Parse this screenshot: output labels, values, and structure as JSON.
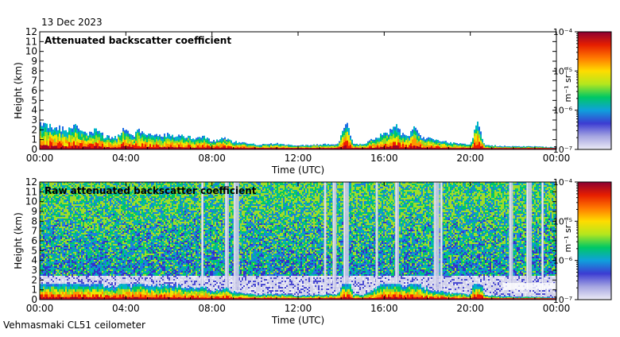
{
  "date_label": "13 Dec 2023",
  "footer_label": "Vehmasmaki CL51 ceilometer",
  "chart_data": [
    {
      "type": "heatmap",
      "title": "Attenuated backscatter coefficient",
      "xlabel": "Time (UTC)",
      "ylabel": "Height (km)",
      "x_ticks": [
        "00:00",
        "04:00",
        "08:00",
        "12:00",
        "16:00",
        "20:00",
        "00:00"
      ],
      "y_ticks": [
        "0",
        "1",
        "2",
        "3",
        "4",
        "5",
        "6",
        "7",
        "8",
        "9",
        "10",
        "11",
        "12"
      ],
      "xlim_hours": [
        0,
        24
      ],
      "ylim_km": [
        0,
        12
      ],
      "colorbar": {
        "label": "m⁻¹ sr⁻¹",
        "ticks": [
          "10⁻⁴",
          "10⁻⁵",
          "10⁻⁶",
          "10⁻⁷"
        ],
        "range_exponent": [
          -7,
          -4
        ]
      },
      "aerosol_layer_top_km": [
        2.4,
        2.1,
        1.6,
        1.3,
        1.2,
        1.4,
        1.5,
        1.2,
        0.9,
        0.8,
        0.5,
        0.6,
        0.4,
        0.5,
        0.6,
        0.5,
        1.7,
        1.4,
        1.1,
        0.7,
        0.5,
        0.4,
        0.3,
        0.3,
        0.2
      ],
      "plumes": [
        {
          "hour": 0.2,
          "top_km": 2.6
        },
        {
          "hour": 1.6,
          "top_km": 2.4
        },
        {
          "hour": 2.6,
          "top_km": 2.2
        },
        {
          "hour": 3.9,
          "top_km": 2.2
        },
        {
          "hour": 4.6,
          "top_km": 2.0
        },
        {
          "hour": 7.5,
          "top_km": 1.4
        },
        {
          "hour": 8.5,
          "top_km": 1.3
        },
        {
          "hour": 14.2,
          "top_km": 2.8
        },
        {
          "hour": 16.5,
          "top_km": 2.4
        },
        {
          "hour": 17.4,
          "top_km": 2.3
        },
        {
          "hour": 20.3,
          "top_km": 2.6
        }
      ]
    },
    {
      "type": "heatmap",
      "title": "Raw attenuated backscatter coefficient",
      "xlabel": "Time (UTC)",
      "ylabel": "Height (km)",
      "x_ticks": [
        "00:00",
        "04:00",
        "08:00",
        "12:00",
        "16:00",
        "20:00",
        "00:00"
      ],
      "y_ticks": [
        "0",
        "1",
        "2",
        "3",
        "4",
        "5",
        "6",
        "7",
        "8",
        "9",
        "10",
        "11",
        "12"
      ],
      "xlim_hours": [
        0,
        24
      ],
      "ylim_km": [
        0,
        12
      ],
      "colorbar": {
        "label": "m⁻¹ sr⁻¹",
        "ticks": [
          "10⁻⁴",
          "10⁻⁵",
          "10⁻⁶",
          "10⁻⁷"
        ],
        "range_exponent": [
          -7,
          -4
        ]
      },
      "noise_floor_km": 2.5,
      "precipitation_streaks_hours": [
        7.5,
        8.6,
        9.0,
        13.2,
        13.6,
        14.1,
        15.6,
        16.5,
        18.3,
        18.6,
        21.8,
        22.6,
        23.3
      ]
    }
  ]
}
